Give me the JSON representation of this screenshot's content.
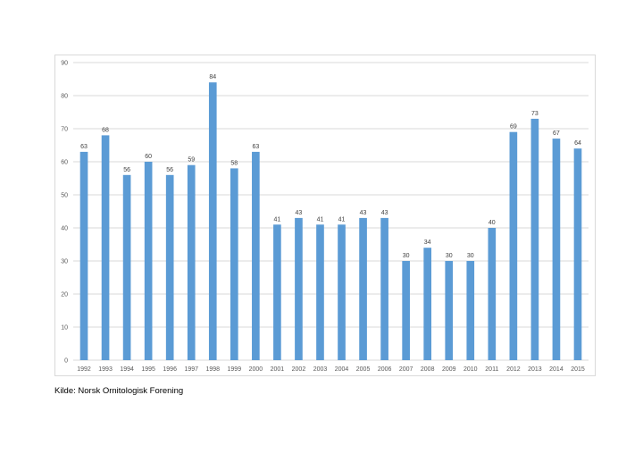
{
  "chart_data": {
    "type": "bar",
    "categories": [
      "1992",
      "1993",
      "1994",
      "1995",
      "1996",
      "1997",
      "1998",
      "1999",
      "2000",
      "2001",
      "2002",
      "2003",
      "2004",
      "2005",
      "2006",
      "2007",
      "2008",
      "2009",
      "2010",
      "2011",
      "2012",
      "2013",
      "2014",
      "2015"
    ],
    "values": [
      63,
      68,
      56,
      60,
      56,
      59,
      84,
      58,
      63,
      41,
      43,
      41,
      41,
      43,
      43,
      30,
      34,
      30,
      30,
      40,
      69,
      73,
      67,
      64
    ],
    "ylim": [
      0,
      90
    ],
    "yticks": [
      0,
      10,
      20,
      30,
      40,
      50,
      60,
      70,
      80,
      90
    ],
    "grid": true,
    "data_labels": true,
    "bar_color": "#5b9bd5",
    "grid_color": "#d9d9d9"
  },
  "source_note": "Kilde: Norsk Ornitologisk Forening"
}
